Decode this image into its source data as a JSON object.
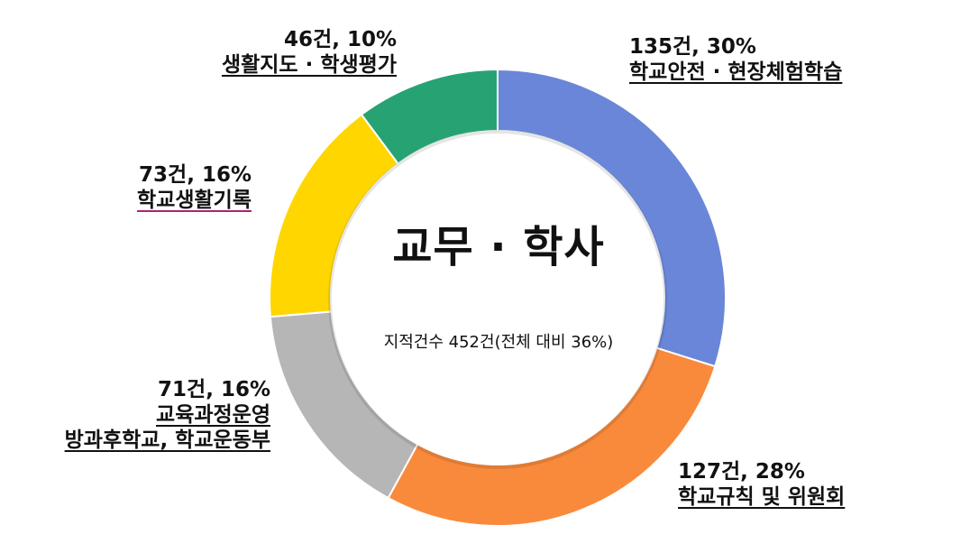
{
  "chart_data": {
    "type": "pie",
    "variant": "donut",
    "title": "교무 · 학사",
    "subtitle": "지적건수 452건(전체 대비 36%)",
    "total": 452,
    "slices": [
      {
        "label": "학교안전 · 현장체험학습",
        "count": 135,
        "percent": 30,
        "display": "135건, 30%",
        "color": "#6a86d8"
      },
      {
        "label": "학교규칙 및 위원회",
        "count": 127,
        "percent": 28,
        "display": "127건, 28%",
        "color": "#f98a3c"
      },
      {
        "label": "교육과정운영 방과후학교, 학교운동부",
        "label_lines": [
          "교육과정운영",
          "방과후학교, 학교운동부"
        ],
        "count": 71,
        "percent": 16,
        "display": "71건, 16%",
        "color": "#b6b6b6"
      },
      {
        "label": "학교생활기록",
        "count": 73,
        "percent": 16,
        "display": "73건, 16%",
        "color": "#ffd600"
      },
      {
        "label": "생활지도 · 학생평가",
        "count": 46,
        "percent": 10,
        "display": "46건, 10%",
        "color": "#27a373"
      }
    ]
  }
}
